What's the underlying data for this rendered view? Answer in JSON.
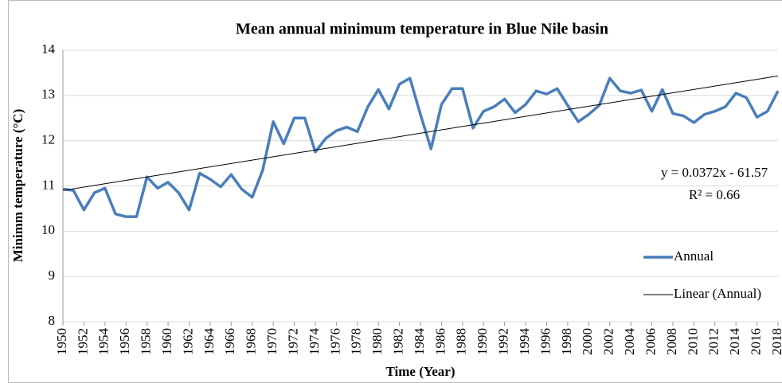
{
  "chart_data": {
    "type": "line",
    "title": "Mean annual minimum temperature in Blue Nile basin",
    "xlabel": "Time (Year)",
    "ylabel": "Minimm temperature (°C)",
    "x": [
      1950,
      1951,
      1952,
      1953,
      1954,
      1955,
      1956,
      1957,
      1958,
      1959,
      1960,
      1961,
      1962,
      1963,
      1964,
      1965,
      1966,
      1967,
      1968,
      1969,
      1970,
      1971,
      1972,
      1973,
      1974,
      1975,
      1976,
      1977,
      1978,
      1979,
      1980,
      1981,
      1982,
      1983,
      1984,
      1985,
      1986,
      1987,
      1988,
      1989,
      1990,
      1991,
      1992,
      1993,
      1994,
      1995,
      1996,
      1997,
      1998,
      1999,
      2000,
      2001,
      2002,
      2003,
      2004,
      2005,
      2006,
      2007,
      2008,
      2009,
      2010,
      2011,
      2012,
      2013,
      2014,
      2015,
      2016,
      2017,
      2018
    ],
    "series": [
      {
        "name": "Annual",
        "color": "#4a7ebb",
        "values": [
          10.93,
          10.9,
          10.47,
          10.85,
          10.95,
          10.38,
          10.32,
          10.32,
          11.2,
          10.95,
          11.08,
          10.85,
          10.47,
          11.28,
          11.15,
          10.98,
          11.25,
          10.93,
          10.75,
          11.35,
          12.42,
          11.93,
          12.5,
          12.5,
          11.75,
          12.05,
          12.22,
          12.3,
          12.2,
          12.75,
          13.13,
          12.7,
          13.25,
          13.38,
          12.58,
          11.82,
          12.8,
          13.15,
          13.15,
          12.28,
          12.65,
          12.75,
          12.92,
          12.62,
          12.8,
          13.1,
          13.03,
          13.15,
          12.78,
          12.42,
          12.58,
          12.78,
          13.38,
          13.1,
          13.05,
          13.12,
          12.65,
          13.13,
          12.6,
          12.55,
          12.4,
          12.58,
          12.65,
          12.75,
          13.05,
          12.95,
          12.52,
          12.65,
          13.1
        ]
      },
      {
        "name": "Linear (Annual)",
        "color": "#000000",
        "x": [
          1950,
          2018
        ],
        "values": [
          10.9,
          13.43
        ]
      }
    ],
    "annotations": [
      "y = 0.0372x  - 61.57",
      "R² = 0.66"
    ],
    "xlim": [
      1950,
      2018
    ],
    "xticks": [
      1950,
      1952,
      1954,
      1956,
      1958,
      1960,
      1962,
      1964,
      1966,
      1968,
      1970,
      1972,
      1974,
      1976,
      1978,
      1980,
      1982,
      1984,
      1986,
      1988,
      1990,
      1992,
      1994,
      1996,
      1998,
      2000,
      2002,
      2004,
      2006,
      2008,
      2010,
      2012,
      2014,
      2016,
      2018
    ],
    "ylim": [
      8,
      14
    ],
    "yticks": [
      8,
      9,
      10,
      11,
      12,
      13,
      14
    ],
    "grid": true,
    "legend": "right"
  }
}
